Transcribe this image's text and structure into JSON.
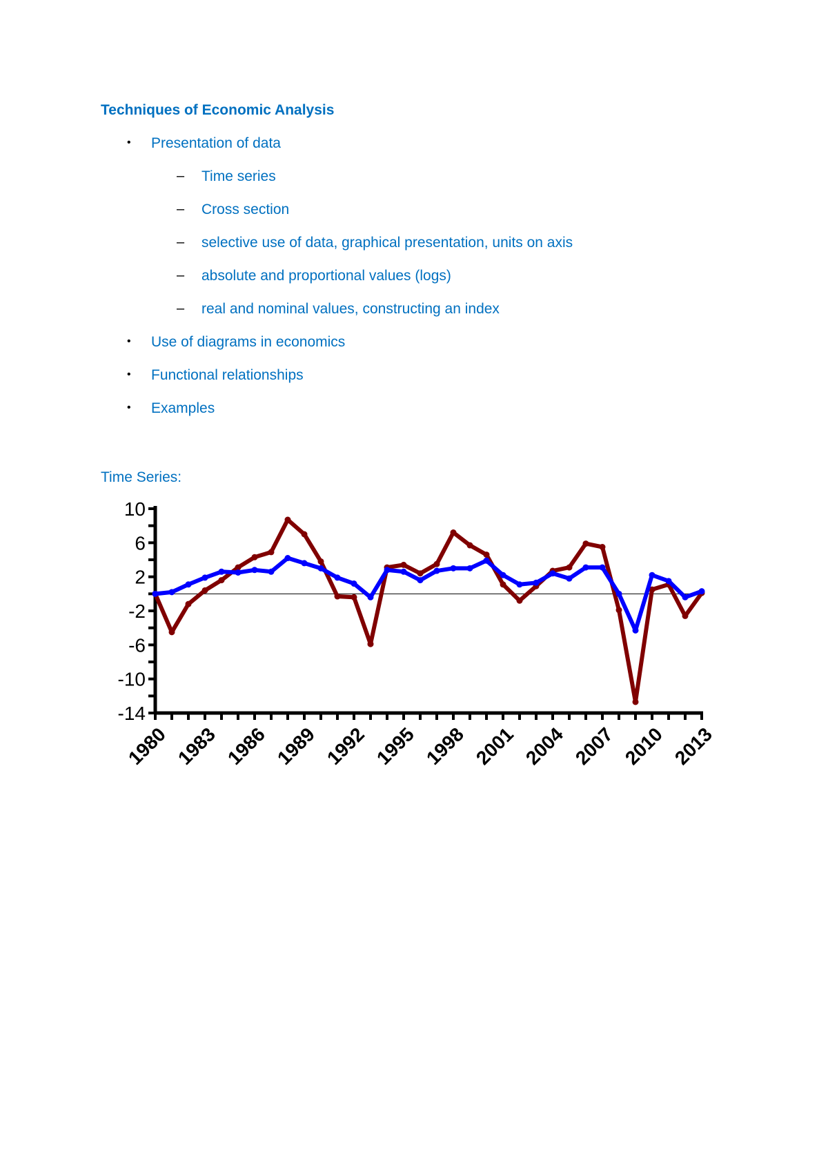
{
  "heading": "Techniques of Economic Analysis",
  "outline": [
    {
      "level": 1,
      "text": "Presentation of data"
    },
    {
      "level": 2,
      "text": "Time series"
    },
    {
      "level": 2,
      "text": "Cross section"
    },
    {
      "level": 2,
      "text": "selective use of data, graphical presentation, units on axis"
    },
    {
      "level": 2,
      "text": "absolute and proportional values (logs)"
    },
    {
      "level": 2,
      "text": "real and nominal values, constructing an index"
    },
    {
      "level": 1,
      "text": "Use of diagrams in economics"
    },
    {
      "level": 1,
      "text": "Functional relationships"
    },
    {
      "level": 1,
      "text": "Examples"
    }
  ],
  "section_label": "Time Series:",
  "colors": {
    "text": "#0070c0",
    "series_red": "#800000",
    "series_blue": "#0000ff"
  },
  "chart_data": {
    "type": "line",
    "x": [
      1980,
      1981,
      1982,
      1983,
      1984,
      1985,
      1986,
      1987,
      1988,
      1989,
      1990,
      1991,
      1992,
      1993,
      1994,
      1995,
      1996,
      1997,
      1998,
      1999,
      2000,
      2001,
      2002,
      2003,
      2004,
      2005,
      2006,
      2007,
      2008,
      2009,
      2010,
      2011,
      2012,
      2013
    ],
    "xticklabels": [
      "1980",
      "1983",
      "1986",
      "1989",
      "1992",
      "1995",
      "1998",
      "2001",
      "2004",
      "2007",
      "2010",
      "2013"
    ],
    "yticklabels": [
      "10",
      "6",
      "2",
      "-2",
      "-6",
      "-10",
      "-14"
    ],
    "ylim": [
      -14,
      10
    ],
    "zero_line": true,
    "series": [
      {
        "color": "#800000",
        "values": [
          0,
          -4.5,
          -1.2,
          0.4,
          1.6,
          3.1,
          4.3,
          4.9,
          8.7,
          7.0,
          3.8,
          -0.3,
          -0.4,
          -5.9,
          3.1,
          3.4,
          2.4,
          3.5,
          7.2,
          5.7,
          4.6,
          1.1,
          -0.8,
          0.9,
          2.7,
          3.1,
          5.9,
          5.5,
          -1.9,
          -12.7,
          0.5,
          1.1,
          -2.6,
          0.1
        ]
      },
      {
        "color": "#0000ff",
        "values": [
          0,
          0.2,
          1.1,
          1.9,
          2.6,
          2.5,
          2.8,
          2.6,
          4.2,
          3.6,
          3.0,
          1.9,
          1.2,
          -0.4,
          2.8,
          2.6,
          1.6,
          2.7,
          3.0,
          3.0,
          3.9,
          2.2,
          1.1,
          1.3,
          2.4,
          1.8,
          3.1,
          3.1,
          0,
          -4.3,
          2.2,
          1.5,
          -0.4,
          0.3
        ]
      }
    ]
  }
}
